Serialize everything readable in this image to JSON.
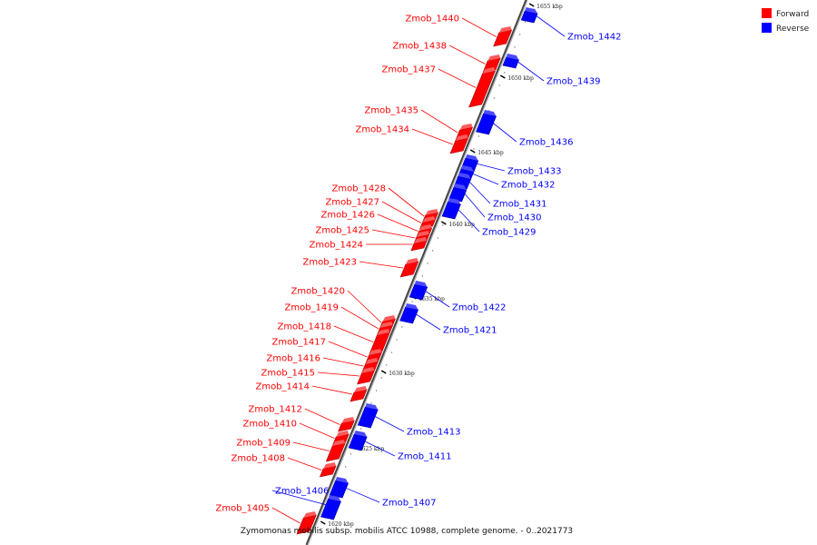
{
  "caption": "Zymomonas mobilis subsp. mobilis ATCC 10988, complete genome. - 0..2021773",
  "legend": [
    {
      "label": "Forward",
      "color": "#ff0000"
    },
    {
      "label": "Reverse",
      "color": "#0000ff"
    }
  ],
  "colors": {
    "forward": "#ff0000",
    "reverse": "#0000ff",
    "axis": "#555555"
  },
  "ticks": [
    "1655 kbp",
    "1650 kbp",
    "1645 kbp",
    "1640 kbp",
    "1635 kbp",
    "1630 kbp",
    "1625 kbp",
    "1620 kbp"
  ],
  "genes": [
    {
      "name": "Zmob_1440",
      "strand": "forward"
    },
    {
      "name": "Zmob_1438",
      "strand": "forward"
    },
    {
      "name": "Zmob_1437",
      "strand": "forward"
    },
    {
      "name": "Zmob_1435",
      "strand": "forward"
    },
    {
      "name": "Zmob_1434",
      "strand": "forward"
    },
    {
      "name": "Zmob_1428",
      "strand": "forward"
    },
    {
      "name": "Zmob_1427",
      "strand": "forward"
    },
    {
      "name": "Zmob_1426",
      "strand": "forward"
    },
    {
      "name": "Zmob_1425",
      "strand": "forward"
    },
    {
      "name": "Zmob_1424",
      "strand": "forward"
    },
    {
      "name": "Zmob_1423",
      "strand": "forward"
    },
    {
      "name": "Zmob_1420",
      "strand": "forward"
    },
    {
      "name": "Zmob_1419",
      "strand": "forward"
    },
    {
      "name": "Zmob_1418",
      "strand": "forward"
    },
    {
      "name": "Zmob_1417",
      "strand": "forward"
    },
    {
      "name": "Zmob_1416",
      "strand": "forward"
    },
    {
      "name": "Zmob_1415",
      "strand": "forward"
    },
    {
      "name": "Zmob_1414",
      "strand": "forward"
    },
    {
      "name": "Zmob_1412",
      "strand": "forward"
    },
    {
      "name": "Zmob_1410",
      "strand": "forward"
    },
    {
      "name": "Zmob_1409",
      "strand": "forward"
    },
    {
      "name": "Zmob_1408",
      "strand": "forward"
    },
    {
      "name": "Zmob_1405",
      "strand": "forward"
    },
    {
      "name": "Zmob_1442",
      "strand": "reverse"
    },
    {
      "name": "Zmob_1439",
      "strand": "reverse"
    },
    {
      "name": "Zmob_1436",
      "strand": "reverse"
    },
    {
      "name": "Zmob_1433",
      "strand": "reverse"
    },
    {
      "name": "Zmob_1432",
      "strand": "reverse"
    },
    {
      "name": "Zmob_1431",
      "strand": "reverse"
    },
    {
      "name": "Zmob_1430",
      "strand": "reverse"
    },
    {
      "name": "Zmob_1429",
      "strand": "reverse"
    },
    {
      "name": "Zmob_1422",
      "strand": "reverse"
    },
    {
      "name": "Zmob_1421",
      "strand": "reverse"
    },
    {
      "name": "Zmob_1413",
      "strand": "reverse"
    },
    {
      "name": "Zmob_1411",
      "strand": "reverse"
    },
    {
      "name": "Zmob_1407",
      "strand": "reverse"
    },
    {
      "name": "Zmob_1406",
      "strand": "reverse"
    }
  ]
}
